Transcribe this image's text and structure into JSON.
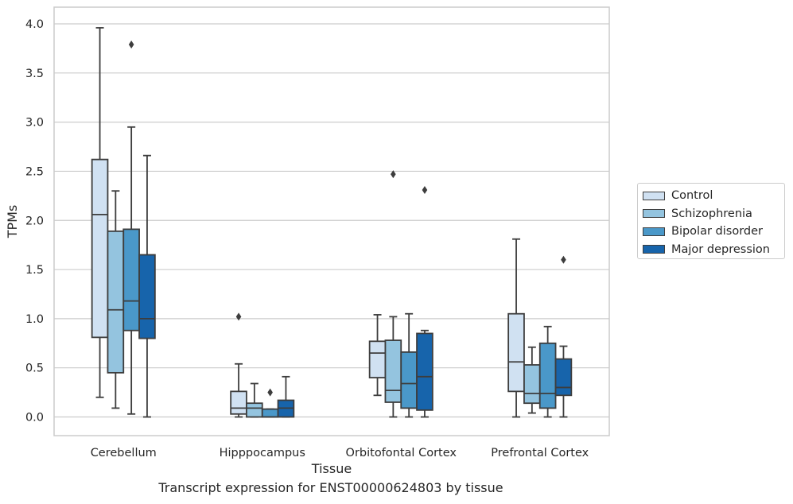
{
  "chart_data": {
    "type": "box",
    "xlabel": "Tissue",
    "ylabel": "TPMs",
    "caption": "Transcript expression for ENST00000624803 by tissue",
    "ylim": [
      -0.19,
      4.17
    ],
    "yticks": [
      0.0,
      0.5,
      1.0,
      1.5,
      2.0,
      2.5,
      3.0,
      3.5,
      4.0
    ],
    "ytick_labels": [
      "0.0",
      "0.5",
      "1.0",
      "1.5",
      "2.0",
      "2.5",
      "3.0",
      "3.5",
      "4.0"
    ],
    "grid": true,
    "legend_position": "right",
    "categories": [
      "Cerebellum",
      "Hipppocampus",
      "Orbitofontal Cortex",
      "Prefrontal Cortex"
    ],
    "series": [
      {
        "name": "Control",
        "color": "#d0e1f2",
        "boxes": [
          {
            "whislo": 0.2,
            "q1": 0.81,
            "med": 2.06,
            "q3": 2.62,
            "whishi": 3.96,
            "fliers": []
          },
          {
            "whislo": 0.0,
            "q1": 0.03,
            "med": 0.09,
            "q3": 0.26,
            "whishi": 0.54,
            "fliers": [
              1.02
            ]
          },
          {
            "whislo": 0.22,
            "q1": 0.4,
            "med": 0.65,
            "q3": 0.77,
            "whishi": 1.04,
            "fliers": []
          },
          {
            "whislo": 0.0,
            "q1": 0.26,
            "med": 0.56,
            "q3": 1.05,
            "whishi": 1.81,
            "fliers": []
          }
        ]
      },
      {
        "name": "Schizophrenia",
        "color": "#94c4df",
        "boxes": [
          {
            "whislo": 0.09,
            "q1": 0.45,
            "med": 1.09,
            "q3": 1.89,
            "whishi": 2.3,
            "fliers": []
          },
          {
            "whislo": 0.0,
            "q1": 0.0,
            "med": 0.09,
            "q3": 0.14,
            "whishi": 0.34,
            "fliers": []
          },
          {
            "whislo": 0.0,
            "q1": 0.15,
            "med": 0.27,
            "q3": 0.78,
            "whishi": 1.02,
            "fliers": [
              2.47
            ]
          },
          {
            "whislo": 0.04,
            "q1": 0.14,
            "med": 0.24,
            "q3": 0.53,
            "whishi": 0.71,
            "fliers": []
          }
        ]
      },
      {
        "name": "Bipolar disorder",
        "color": "#4a98c9",
        "boxes": [
          {
            "whislo": 0.03,
            "q1": 0.88,
            "med": 1.18,
            "q3": 1.91,
            "whishi": 2.95,
            "fliers": [
              3.79
            ]
          },
          {
            "whislo": 0.0,
            "q1": 0.0,
            "med": 0.0,
            "q3": 0.08,
            "whishi": 0.08,
            "fliers": [
              0.25
            ]
          },
          {
            "whislo": 0.0,
            "q1": 0.09,
            "med": 0.34,
            "q3": 0.66,
            "whishi": 1.05,
            "fliers": []
          },
          {
            "whislo": 0.0,
            "q1": 0.09,
            "med": 0.24,
            "q3": 0.75,
            "whishi": 0.92,
            "fliers": []
          }
        ]
      },
      {
        "name": "Major depression",
        "color": "#1764ab",
        "boxes": [
          {
            "whislo": 0.0,
            "q1": 0.8,
            "med": 1.0,
            "q3": 1.65,
            "whishi": 2.66,
            "fliers": []
          },
          {
            "whislo": 0.0,
            "q1": 0.0,
            "med": 0.09,
            "q3": 0.17,
            "whishi": 0.41,
            "fliers": []
          },
          {
            "whislo": 0.0,
            "q1": 0.07,
            "med": 0.41,
            "q3": 0.85,
            "whishi": 0.88,
            "fliers": [
              2.31
            ]
          },
          {
            "whislo": 0.0,
            "q1": 0.22,
            "med": 0.3,
            "q3": 0.59,
            "whishi": 0.72,
            "fliers": [
              1.6
            ]
          }
        ]
      }
    ]
  }
}
